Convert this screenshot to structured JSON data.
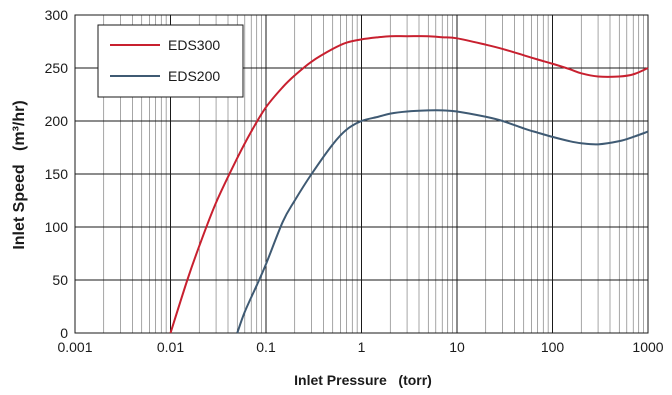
{
  "chart_data": {
    "type": "line",
    "xlabel": "Inlet Pressure   (torr)",
    "ylabel": "Inlet Speed   (m³/hr)",
    "x_scale": "log",
    "xlim": [
      0.001,
      1000
    ],
    "ylim": [
      0,
      300
    ],
    "x_ticks": [
      0.001,
      0.01,
      0.1,
      1,
      10,
      100,
      1000
    ],
    "x_tick_labels": [
      "0.001",
      "0.01",
      "0.1",
      "1",
      "10",
      "100",
      "1000"
    ],
    "y_ticks": [
      0,
      50,
      100,
      150,
      200,
      250,
      300
    ],
    "y_tick_labels": [
      "0",
      "50",
      "100",
      "150",
      "200",
      "250",
      "300"
    ],
    "grid": true,
    "legend_position": "top-left",
    "series": [
      {
        "name": "EDS300",
        "color": "#c8202f",
        "x": [
          0.01,
          0.015,
          0.02,
          0.03,
          0.05,
          0.07,
          0.1,
          0.15,
          0.2,
          0.3,
          0.5,
          0.7,
          1,
          1.5,
          2,
          3,
          5,
          7,
          10,
          20,
          30,
          50,
          70,
          100,
          150,
          200,
          300,
          500,
          700,
          1000
        ],
        "y": [
          0,
          50,
          82,
          123,
          165,
          190,
          213,
          232,
          243,
          256,
          268,
          274,
          277,
          279,
          280,
          280,
          280,
          279,
          278,
          272,
          268,
          262,
          258,
          254,
          249,
          245,
          242,
          242,
          244,
          250
        ]
      },
      {
        "name": "EDS200",
        "color": "#3f5a73",
        "x": [
          0.05,
          0.06,
          0.08,
          0.1,
          0.15,
          0.2,
          0.3,
          0.5,
          0.7,
          1,
          1.5,
          2,
          3,
          5,
          7,
          10,
          20,
          30,
          50,
          70,
          100,
          150,
          200,
          300,
          500,
          700,
          1000
        ],
        "y": [
          0,
          20,
          45,
          65,
          105,
          125,
          150,
          178,
          192,
          200,
          204,
          207,
          209,
          210,
          210,
          209,
          204,
          200,
          193,
          189,
          185,
          181,
          179,
          178,
          181,
          185,
          190
        ]
      }
    ]
  }
}
